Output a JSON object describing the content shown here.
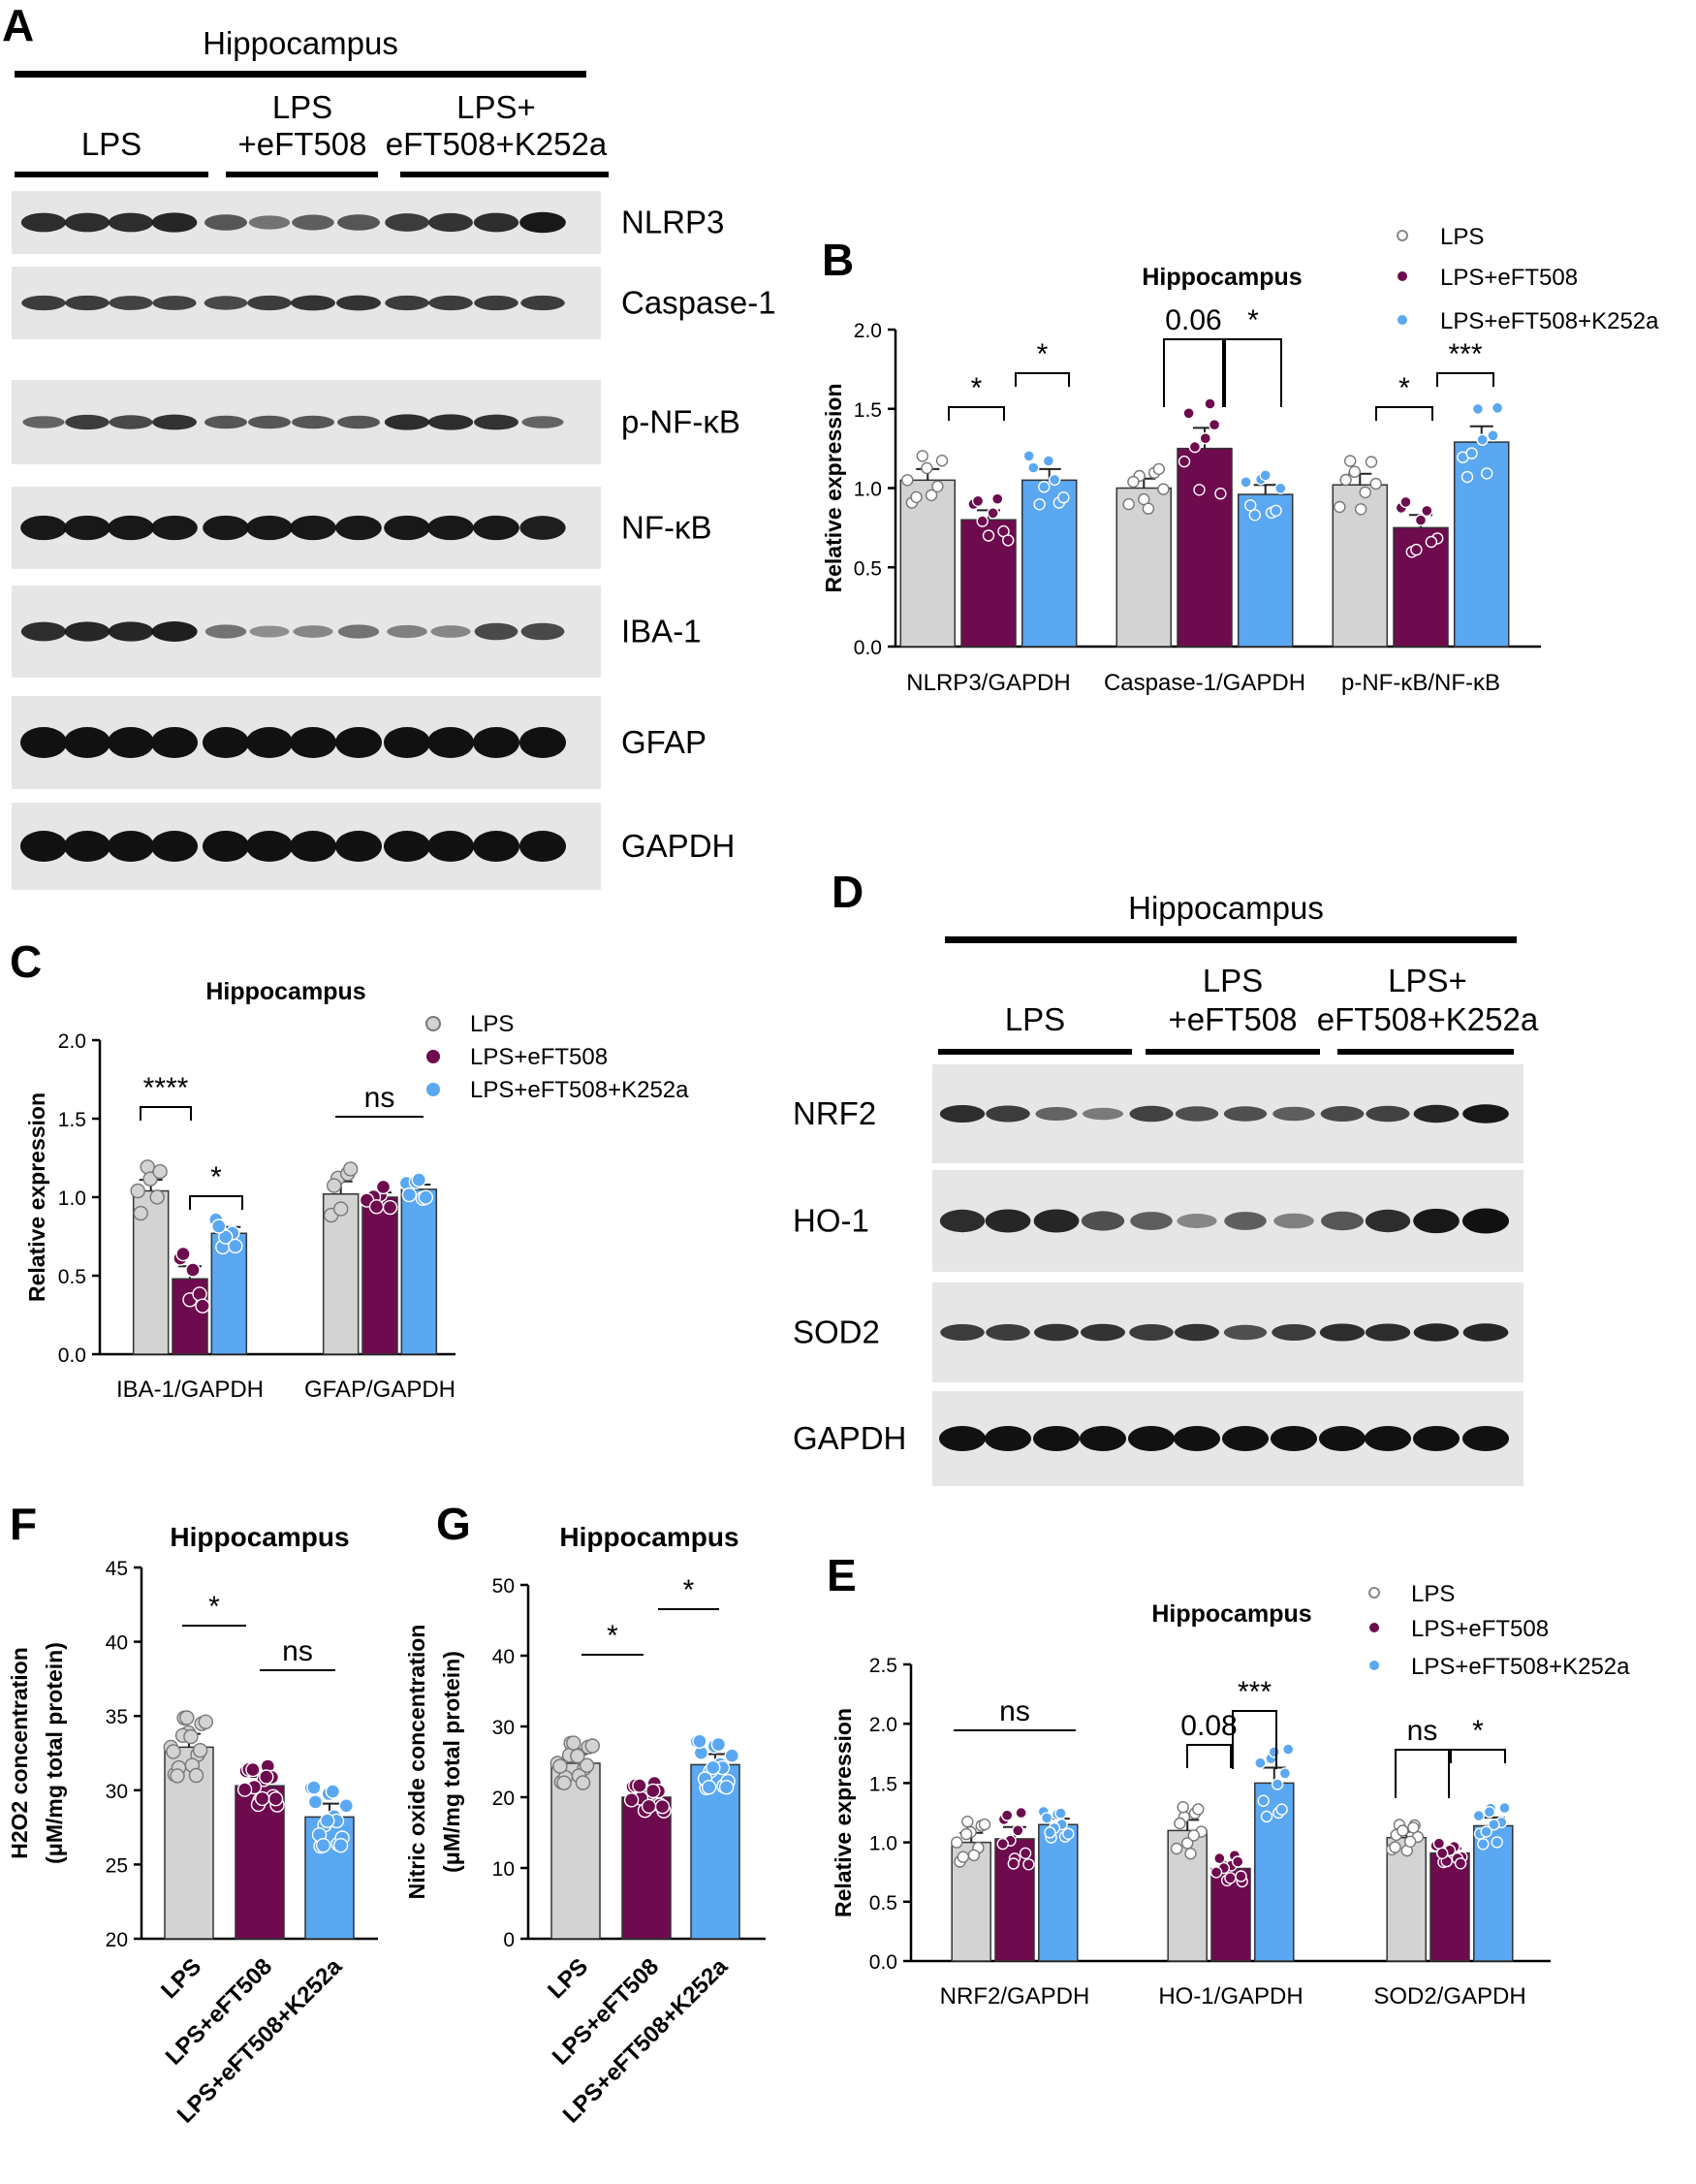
{
  "colors": {
    "lps": "#d3d3d3",
    "eft": "#6e0a4e",
    "k252a": "#5aa7f2",
    "lps_dot": "#8c8c8c",
    "blot_bg": "#e6e6e6"
  },
  "panelA": {
    "letter": "A",
    "region": "Hippocampus",
    "groups": [
      "LPS",
      "LPS",
      "+eFT508",
      "LPS+",
      "eFT508+K252a"
    ],
    "blots": [
      "NLRP3",
      "Caspase-1",
      "p-NF-κB",
      "NF-κB",
      "IBA-1",
      "GFAP",
      "GAPDH"
    ]
  },
  "panelD": {
    "letter": "D",
    "region": "Hippocampus",
    "groups": [
      "LPS",
      "LPS",
      "+eFT508",
      "LPS+",
      "eFT508+K252a"
    ],
    "blots": [
      "NRF2",
      "HO-1",
      "SOD2",
      "GAPDH"
    ]
  },
  "legend": [
    "LPS",
    "LPS+eFT508",
    "LPS+eFT508+K252a"
  ],
  "chart_data": [
    {
      "id": "B",
      "type": "bar",
      "title": "Hippocampus",
      "ylabel": "Relative expression",
      "ylim": [
        0,
        2.0
      ],
      "yticks": [
        "0.0",
        "0.5",
        "1.0",
        "1.5",
        "2.0"
      ],
      "categories": [
        "NLRP3/GAPDH",
        "Caspase-1/GAPDH",
        "p-NF-κB/NF-κB"
      ],
      "series": [
        {
          "name": "LPS",
          "values": [
            1.05,
            1.0,
            1.02
          ],
          "sem": [
            0.07,
            0.06,
            0.07
          ]
        },
        {
          "name": "LPS+eFT508",
          "values": [
            0.8,
            1.25,
            0.75
          ],
          "sem": [
            0.06,
            0.13,
            0.08
          ]
        },
        {
          "name": "LPS+eFT508+K252a",
          "values": [
            1.05,
            0.96,
            1.29
          ],
          "sem": [
            0.07,
            0.06,
            0.1
          ]
        }
      ],
      "annotations": [
        "*",
        "*",
        "0.06",
        "*",
        "*",
        "***"
      ]
    },
    {
      "id": "C",
      "type": "bar",
      "title": "Hippocampus",
      "ylabel": "Relative expression",
      "ylim": [
        0,
        2.0
      ],
      "yticks": [
        "0.0",
        "0.5",
        "1.0",
        "1.5",
        "2.0"
      ],
      "categories": [
        "IBA-1/GAPDH",
        "GFAP/GAPDH"
      ],
      "series": [
        {
          "name": "LPS",
          "values": [
            1.04,
            1.02
          ],
          "sem": [
            0.07,
            0.08
          ]
        },
        {
          "name": "LPS+eFT508",
          "values": [
            0.48,
            1.0
          ],
          "sem": [
            0.08,
            0.03
          ]
        },
        {
          "name": "LPS+eFT508+K252a",
          "values": [
            0.77,
            1.05
          ],
          "sem": [
            0.04,
            0.03
          ]
        }
      ],
      "annotations": [
        "****",
        "*",
        "ns"
      ]
    },
    {
      "id": "E",
      "type": "bar",
      "title": "Hippocampus",
      "ylabel": "Relative expression",
      "ylim": [
        0,
        2.5
      ],
      "yticks": [
        "0.0",
        "0.5",
        "1.0",
        "1.5",
        "2.0",
        "2.5"
      ],
      "categories": [
        "NRF2/GAPDH",
        "HO-1/GAPDH",
        "SOD2/GAPDH"
      ],
      "series": [
        {
          "name": "LPS",
          "values": [
            1.0,
            1.1,
            1.04
          ],
          "sem": [
            0.08,
            0.09,
            0.05
          ]
        },
        {
          "name": "LPS+eFT508",
          "values": [
            1.03,
            0.78,
            0.91
          ],
          "sem": [
            0.1,
            0.05,
            0.04
          ]
        },
        {
          "name": "LPS+eFT508+K252a",
          "values": [
            1.15,
            1.5,
            1.14
          ],
          "sem": [
            0.05,
            0.13,
            0.07
          ]
        }
      ],
      "annotations": [
        "ns",
        "0.08",
        "***",
        "ns",
        "*"
      ]
    },
    {
      "id": "F",
      "type": "bar",
      "title": "Hippocampus",
      "ylabel": "H2O2 concentration",
      "ylabel2": "(μM/mg total protein)",
      "ylim": [
        20,
        45
      ],
      "yticks": [
        "20",
        "25",
        "30",
        "35",
        "40",
        "45"
      ],
      "categories": [
        "LPS",
        "LPS+eFT508",
        "LPS+eFT508+K252a"
      ],
      "values": [
        32.9,
        30.3,
        28.2
      ],
      "sem": [
        0.9,
        0.6,
        0.9
      ],
      "annotations": [
        "*",
        "ns"
      ]
    },
    {
      "id": "G",
      "type": "bar",
      "title": "Hippocampus",
      "ylabel": "Nitric oxide concentration",
      "ylabel2": "(μM/mg total protein)",
      "ylim": [
        0,
        50
      ],
      "yticks": [
        "0",
        "10",
        "20",
        "30",
        "40",
        "50"
      ],
      "categories": [
        "LPS",
        "LPS+eFT508",
        "LPS+eFT508+K252a"
      ],
      "values": [
        24.8,
        20.0,
        24.6
      ],
      "sem": [
        1.3,
        0.9,
        1.5
      ],
      "annotations": [
        "*",
        "*"
      ]
    }
  ]
}
